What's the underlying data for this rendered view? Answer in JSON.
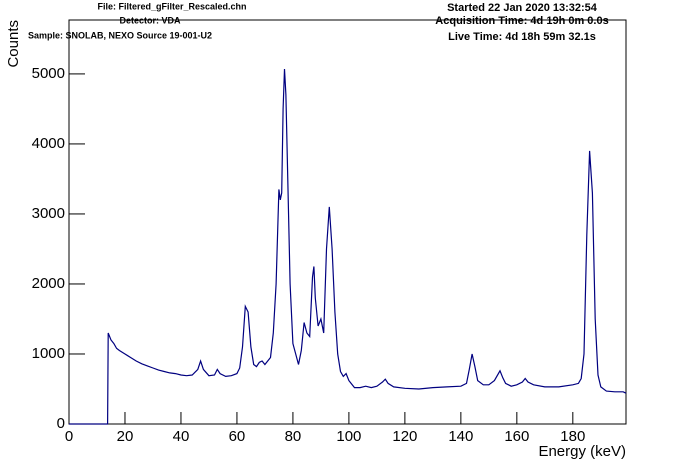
{
  "chart_data": {
    "type": "line",
    "annotations_left": [
      "File: Filtered_gFilter_Rescaled.chn",
      "Detector: VDA",
      "Sample: SNOLAB, NEXO Source 19-001-U2"
    ],
    "annotations_right": [
      "Started 22 Jan 2020 13:32:54",
      "Acquisition Time: 4d 19h 0m 0.0s",
      "Live Time: 4d 18h 59m 32.1s"
    ],
    "x_label": "Energy (keV)",
    "y_label": "Counts",
    "xlim": [
      0,
      199
    ],
    "xticks": [
      0,
      20,
      40,
      60,
      80,
      100,
      120,
      140,
      160,
      180
    ],
    "ylim": [
      0,
      5770
    ],
    "yticks": [
      0,
      1000,
      2000,
      3000,
      4000,
      5000
    ],
    "color": "#000080",
    "x": [
      0,
      13.8,
      14,
      15,
      16,
      17,
      18,
      20,
      22,
      24,
      26,
      28,
      30,
      32,
      34,
      36,
      38,
      40,
      42,
      44,
      46,
      47,
      48,
      50,
      52,
      53,
      54,
      56,
      58,
      60,
      61,
      62,
      63,
      64,
      65,
      66,
      67,
      68,
      69,
      70,
      72,
      73,
      74,
      75,
      75.5,
      76,
      76.5,
      77,
      77.5,
      78,
      79,
      80,
      81,
      82,
      83,
      84,
      85,
      86,
      87,
      87.5,
      88,
      89,
      90,
      91,
      92,
      93,
      94,
      95,
      96,
      97,
      98,
      99,
      100,
      102,
      104,
      106,
      108,
      110,
      112,
      113,
      114,
      116,
      120,
      125,
      130,
      135,
      140,
      142,
      143,
      144,
      145,
      146,
      148,
      150,
      152,
      154,
      155,
      156,
      158,
      160,
      162,
      163,
      164,
      166,
      170,
      175,
      180,
      182,
      183,
      184,
      185,
      186,
      187,
      188,
      189,
      190,
      192,
      195,
      198,
      199
    ],
    "values": [
      0,
      0,
      1300,
      1200,
      1150,
      1080,
      1050,
      1000,
      950,
      900,
      860,
      830,
      800,
      770,
      750,
      730,
      720,
      700,
      690,
      700,
      780,
      900,
      780,
      690,
      700,
      780,
      720,
      680,
      690,
      720,
      800,
      1100,
      1680,
      1600,
      1100,
      850,
      820,
      880,
      900,
      850,
      950,
      1300,
      2000,
      3350,
      3200,
      3300,
      4500,
      5070,
      4700,
      3800,
      2000,
      1150,
      1000,
      850,
      1050,
      1450,
      1300,
      1250,
      2100,
      2250,
      1800,
      1400,
      1500,
      1300,
      2500,
      3100,
      2500,
      1600,
      1000,
      750,
      680,
      720,
      620,
      520,
      520,
      540,
      520,
      540,
      600,
      640,
      580,
      530,
      510,
      500,
      520,
      530,
      540,
      580,
      780,
      1000,
      820,
      620,
      560,
      560,
      620,
      760,
      660,
      580,
      540,
      560,
      600,
      650,
      600,
      560,
      530,
      530,
      560,
      580,
      650,
      1000,
      2700,
      3900,
      3300,
      1500,
      700,
      530,
      470,
      460,
      460,
      440
    ]
  }
}
